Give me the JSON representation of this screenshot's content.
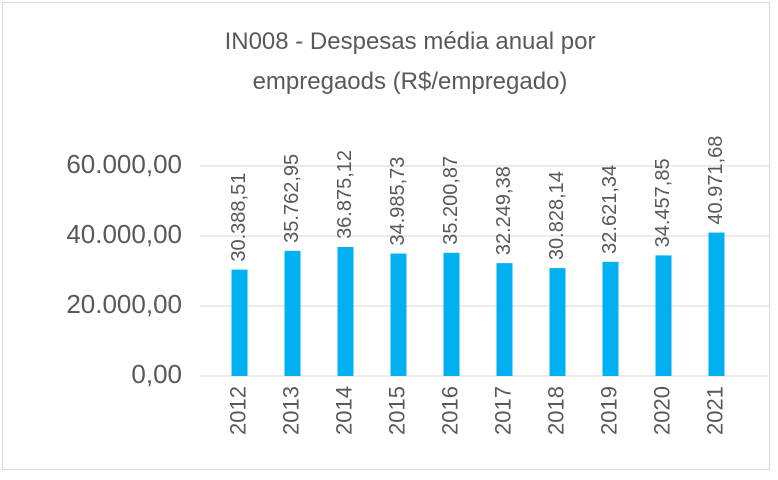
{
  "chart_data": {
    "type": "bar",
    "title": "IN008 - Despesas média anual por empregaods (R$/empregado)",
    "categories": [
      "2012",
      "2013",
      "2014",
      "2015",
      "2016",
      "2017",
      "2018",
      "2019",
      "2020",
      "2021"
    ],
    "values": [
      30388.51,
      35762.95,
      36875.12,
      34985.73,
      35200.87,
      32249.38,
      30828.14,
      32621.34,
      34457.85,
      40971.68
    ],
    "value_labels": [
      "30.388,51",
      "35.762,95",
      "36.875,12",
      "34.985,73",
      "35.200,87",
      "32.249,38",
      "30.828,14",
      "32.621,34",
      "34.457,85",
      "40.971,68"
    ],
    "color": "#00b0f0",
    "ylim": [
      0,
      60000
    ],
    "yticks": [
      {
        "value": 0,
        "label": "0,00"
      },
      {
        "value": 20000,
        "label": "20.000,00"
      },
      {
        "value": 40000,
        "label": "40.000,00"
      },
      {
        "value": 60000,
        "label": "60.000,00"
      }
    ],
    "grid": true
  }
}
